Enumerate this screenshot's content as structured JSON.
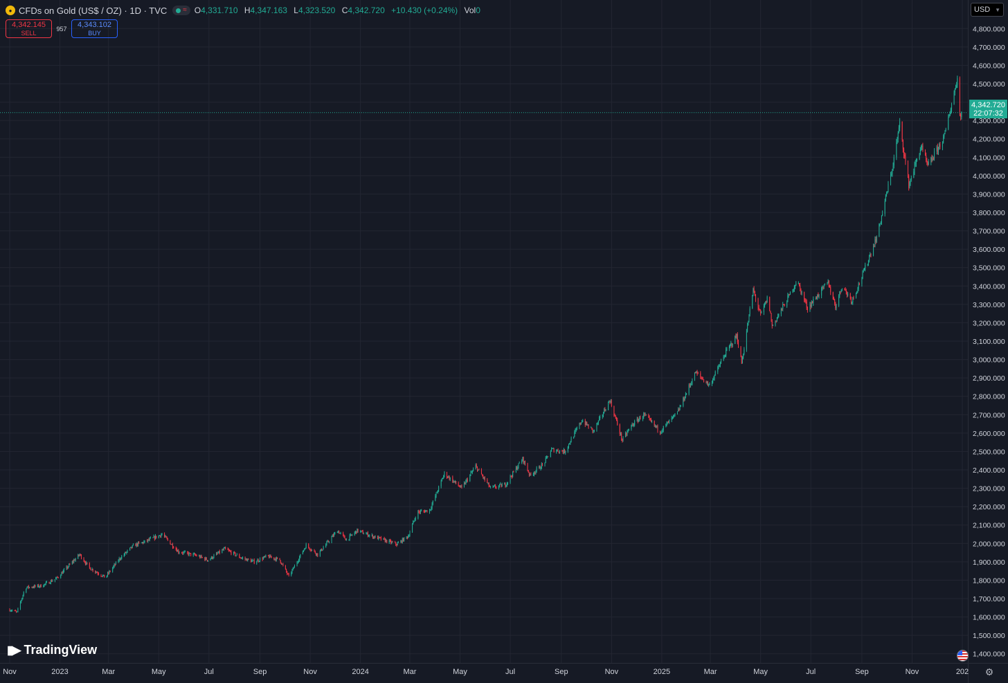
{
  "header": {
    "title": "CFDs on Gold (US$ / OZ) · 1D · TVC",
    "open_label": "O",
    "open": "4,331.710",
    "high_label": "H",
    "high": "4,347.163",
    "low_label": "L",
    "low": "4,323.520",
    "close_label": "C",
    "close": "4,342.720",
    "change": "+10.430 (+0.24%)",
    "vol_label": "Vol",
    "vol": "0",
    "logo_icon": "gold-coin-icon",
    "status_icons": [
      "market-open-dot-icon",
      "data-feed-icon"
    ]
  },
  "trade": {
    "sell_price": "4,342.145",
    "sell_label": "SELL",
    "spread": "957",
    "buy_price": "4,343.102",
    "buy_label": "BUY"
  },
  "currency": {
    "label": "USD"
  },
  "price_tag": {
    "price": "4,342.720",
    "countdown": "22:07:32"
  },
  "brand": {
    "name": "TradingView"
  },
  "colors": {
    "background": "#161a25",
    "grid": "#232632",
    "up": "#22ab94",
    "down": "#f23645",
    "text": "#d1d4dc",
    "price_tag": "#22ab94",
    "sell": "#f23645",
    "buy": "#2962ff"
  },
  "chart_data": {
    "type": "candlestick",
    "title": "CFDs on Gold (US$ / OZ)",
    "interval": "1D",
    "yaxis": {
      "range": [
        1350,
        4850
      ],
      "ticks": [
        1400,
        1500,
        1600,
        1700,
        1800,
        1900,
        2000,
        2100,
        2200,
        2300,
        2400,
        2500,
        2600,
        2700,
        2800,
        2900,
        3000,
        3100,
        3200,
        3300,
        3400,
        3500,
        3600,
        3700,
        3800,
        3900,
        4000,
        4100,
        4200,
        4300,
        4400,
        4500,
        4600,
        4700,
        4800
      ],
      "tick_labels": [
        "1,400.000",
        "1,500.000",
        "1,600.000",
        "1,700.000",
        "1,800.000",
        "1,900.000",
        "2,000.000",
        "2,100.000",
        "2,200.000",
        "2,300.000",
        "2,400.000",
        "2,500.000",
        "2,600.000",
        "2,700.000",
        "2,800.000",
        "2,900.000",
        "3,000.000",
        "3,100.000",
        "3,200.000",
        "3,300.000",
        "3,400.000",
        "3,500.000",
        "3,600.000",
        "3,700.000",
        "3,800.000",
        "3,900.000",
        "4,000.000",
        "4,100.000",
        "4,200.000",
        "4,300.000",
        "4,400.000",
        "4,500.000",
        "4,600.000",
        "4,700.000",
        "4,800.000"
      ]
    },
    "xaxis": {
      "range": [
        "2022-11-01",
        "2026-01-01"
      ],
      "ticks": [
        {
          "date": "2022-11-01",
          "label": "Nov"
        },
        {
          "date": "2023-01-01",
          "label": "2023"
        },
        {
          "date": "2023-03-01",
          "label": "Mar"
        },
        {
          "date": "2023-05-01",
          "label": "May"
        },
        {
          "date": "2023-07-01",
          "label": "Jul"
        },
        {
          "date": "2023-09-01",
          "label": "Sep"
        },
        {
          "date": "2023-11-01",
          "label": "Nov"
        },
        {
          "date": "2024-01-01",
          "label": "2024"
        },
        {
          "date": "2024-03-01",
          "label": "Mar"
        },
        {
          "date": "2024-05-01",
          "label": "May"
        },
        {
          "date": "2024-07-01",
          "label": "Jul"
        },
        {
          "date": "2024-09-01",
          "label": "Sep"
        },
        {
          "date": "2024-11-01",
          "label": "Nov"
        },
        {
          "date": "2025-01-01",
          "label": "2025"
        },
        {
          "date": "2025-03-01",
          "label": "Mar"
        },
        {
          "date": "2025-05-01",
          "label": "May"
        },
        {
          "date": "2025-07-01",
          "label": "Jul"
        },
        {
          "date": "2025-09-01",
          "label": "Sep"
        },
        {
          "date": "2025-11-01",
          "label": "Nov"
        },
        {
          "date": "2026-01-01",
          "label": "202"
        }
      ]
    },
    "grid": true,
    "last_price": 4342.72,
    "close_path": [
      {
        "date": "2022-11-01",
        "value": 1640
      },
      {
        "date": "2022-11-10",
        "value": 1625
      },
      {
        "date": "2022-11-20",
        "value": 1760
      },
      {
        "date": "2022-12-10",
        "value": 1770
      },
      {
        "date": "2022-12-28",
        "value": 1810
      },
      {
        "date": "2023-01-25",
        "value": 1940
      },
      {
        "date": "2023-02-05",
        "value": 1870
      },
      {
        "date": "2023-02-25",
        "value": 1815
      },
      {
        "date": "2023-03-15",
        "value": 1920
      },
      {
        "date": "2023-04-01",
        "value": 1990
      },
      {
        "date": "2023-04-15",
        "value": 2010
      },
      {
        "date": "2023-05-05",
        "value": 2050
      },
      {
        "date": "2023-05-25",
        "value": 1955
      },
      {
        "date": "2023-06-15",
        "value": 1935
      },
      {
        "date": "2023-06-30",
        "value": 1910
      },
      {
        "date": "2023-07-20",
        "value": 1970
      },
      {
        "date": "2023-08-10",
        "value": 1920
      },
      {
        "date": "2023-08-25",
        "value": 1900
      },
      {
        "date": "2023-09-10",
        "value": 1930
      },
      {
        "date": "2023-09-25",
        "value": 1910
      },
      {
        "date": "2023-10-06",
        "value": 1820
      },
      {
        "date": "2023-10-27",
        "value": 1990
      },
      {
        "date": "2023-11-10",
        "value": 1940
      },
      {
        "date": "2023-12-04",
        "value": 2070
      },
      {
        "date": "2023-12-15",
        "value": 2020
      },
      {
        "date": "2023-12-28",
        "value": 2070
      },
      {
        "date": "2024-01-15",
        "value": 2040
      },
      {
        "date": "2024-02-14",
        "value": 1995
      },
      {
        "date": "2024-02-28",
        "value": 2040
      },
      {
        "date": "2024-03-10",
        "value": 2170
      },
      {
        "date": "2024-03-25",
        "value": 2180
      },
      {
        "date": "2024-04-12",
        "value": 2380
      },
      {
        "date": "2024-04-25",
        "value": 2330
      },
      {
        "date": "2024-05-03",
        "value": 2300
      },
      {
        "date": "2024-05-20",
        "value": 2420
      },
      {
        "date": "2024-06-07",
        "value": 2300
      },
      {
        "date": "2024-06-25",
        "value": 2320
      },
      {
        "date": "2024-07-16",
        "value": 2460
      },
      {
        "date": "2024-07-25",
        "value": 2370
      },
      {
        "date": "2024-08-10",
        "value": 2430
      },
      {
        "date": "2024-08-20",
        "value": 2510
      },
      {
        "date": "2024-09-05",
        "value": 2500
      },
      {
        "date": "2024-09-26",
        "value": 2670
      },
      {
        "date": "2024-10-10",
        "value": 2610
      },
      {
        "date": "2024-10-30",
        "value": 2780
      },
      {
        "date": "2024-11-14",
        "value": 2560
      },
      {
        "date": "2024-11-25",
        "value": 2640
      },
      {
        "date": "2024-12-10",
        "value": 2700
      },
      {
        "date": "2024-12-30",
        "value": 2610
      },
      {
        "date": "2025-01-20",
        "value": 2710
      },
      {
        "date": "2025-02-11",
        "value": 2930
      },
      {
        "date": "2025-02-28",
        "value": 2860
      },
      {
        "date": "2025-03-20",
        "value": 3040
      },
      {
        "date": "2025-04-02",
        "value": 3130
      },
      {
        "date": "2025-04-08",
        "value": 2980
      },
      {
        "date": "2025-04-22",
        "value": 3380
      },
      {
        "date": "2025-05-01",
        "value": 3240
      },
      {
        "date": "2025-05-10",
        "value": 3340
      },
      {
        "date": "2025-05-15",
        "value": 3180
      },
      {
        "date": "2025-06-05",
        "value": 3350
      },
      {
        "date": "2025-06-14",
        "value": 3430
      },
      {
        "date": "2025-06-27",
        "value": 3280
      },
      {
        "date": "2025-07-22",
        "value": 3420
      },
      {
        "date": "2025-07-31",
        "value": 3290
      },
      {
        "date": "2025-08-08",
        "value": 3400
      },
      {
        "date": "2025-08-20",
        "value": 3320
      },
      {
        "date": "2025-09-01",
        "value": 3450
      },
      {
        "date": "2025-09-20",
        "value": 3680
      },
      {
        "date": "2025-10-08",
        "value": 4040
      },
      {
        "date": "2025-10-17",
        "value": 4280
      },
      {
        "date": "2025-10-28",
        "value": 3950
      },
      {
        "date": "2025-11-12",
        "value": 4160
      },
      {
        "date": "2025-11-20",
        "value": 4050
      },
      {
        "date": "2025-12-10",
        "value": 4210
      },
      {
        "date": "2025-12-22",
        "value": 4450
      },
      {
        "date": "2025-12-26",
        "value": 4530
      },
      {
        "date": "2025-12-29",
        "value": 4330
      },
      {
        "date": "2025-12-31",
        "value": 4342
      }
    ]
  }
}
